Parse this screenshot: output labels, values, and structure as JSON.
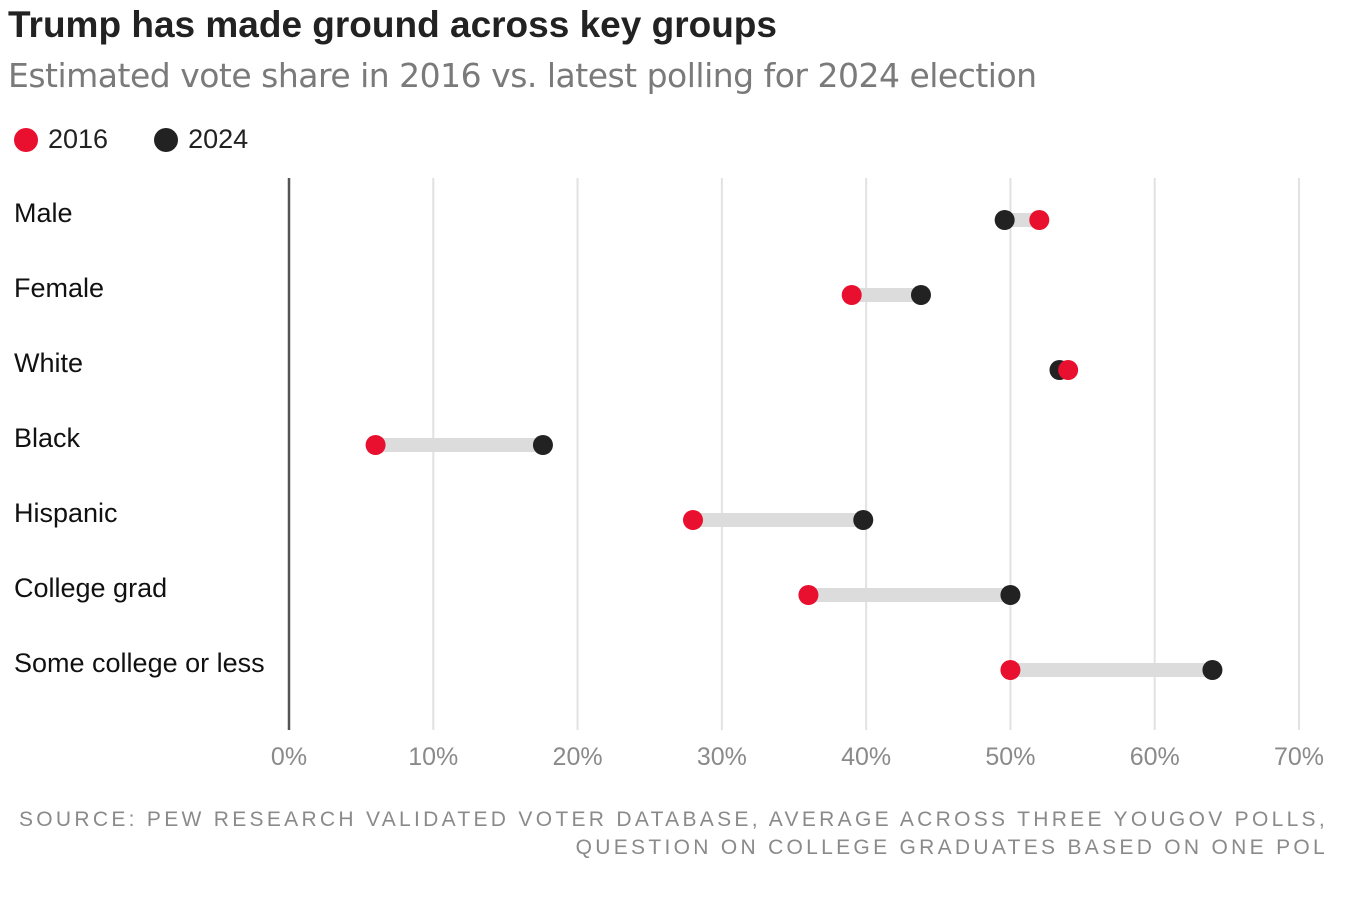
{
  "title": "Trump has made ground across key groups",
  "subtitle": "Estimated vote share in 2016 vs. latest polling for 2024 election",
  "legend": [
    {
      "label": "2016",
      "color": "#e8102e"
    },
    {
      "label": "2024",
      "color": "#222222"
    }
  ],
  "source": "SOURCE: PEW RESEARCH VALIDATED VOTER DATABASE, AVERAGE ACROSS THREE YOUGOV POLLS, QUESTION ON COLLEGE GRADUATES BASED ON ONE POL",
  "chart_data": {
    "type": "dumbbell",
    "categories": [
      "Male",
      "Female",
      "White",
      "Black",
      "Hispanic",
      "College grad",
      "Some college or less"
    ],
    "series": [
      {
        "name": "2016",
        "color": "#e8102e",
        "values": [
          52,
          39,
          54,
          6,
          28,
          36,
          50
        ]
      },
      {
        "name": "2024",
        "color": "#222222",
        "values": [
          49.6,
          43.8,
          53.4,
          17.6,
          39.8,
          50,
          64
        ]
      }
    ],
    "xlim": [
      0,
      70
    ],
    "xticks": [
      0,
      10,
      20,
      30,
      40,
      50,
      60,
      70
    ],
    "xtick_labels": [
      "0%",
      "10%",
      "20%",
      "30%",
      "40%",
      "50%",
      "60%",
      "70%"
    ],
    "grid": true,
    "legend_position": "top-left",
    "connector_color": "#dcdcdc",
    "grid_color": "#e2e2e2",
    "axis_color": "#555555"
  }
}
